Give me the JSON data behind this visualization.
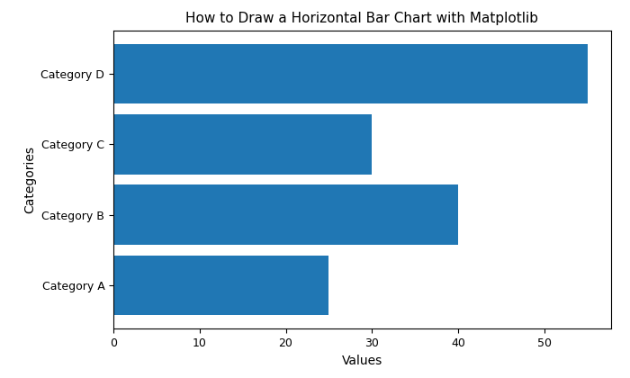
{
  "categories": [
    "Category A",
    "Category B",
    "Category C",
    "Category D"
  ],
  "values": [
    25,
    40,
    30,
    55
  ],
  "bar_color": "#2077b4",
  "title": "How to Draw a Horizontal Bar Chart with Matplotlib",
  "xlabel": "Values",
  "ylabel": "Categories",
  "title_fontsize": 11,
  "label_fontsize": 10,
  "tick_fontsize": 9,
  "background_color": "#ffffff",
  "bar_height": 0.85
}
